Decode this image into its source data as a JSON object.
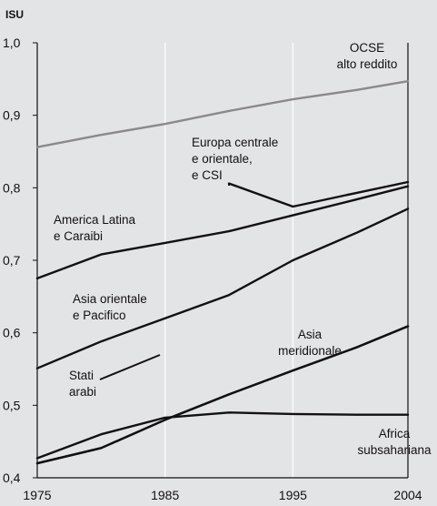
{
  "chart_data": {
    "type": "line",
    "ylabel": "ISU",
    "xlim": [
      1975,
      2004
    ],
    "ylim": [
      0.4,
      1.0
    ],
    "x_ticks": [
      "1975",
      "1985",
      "1995",
      "2004"
    ],
    "y_ticks": [
      "0,4",
      "0,5",
      "0,6",
      "0,7",
      "0,8",
      "0,9",
      "1,0"
    ],
    "grid": "vertical",
    "series": [
      {
        "name": "OCSE alto reddito",
        "color": "#8a8a8a",
        "x": [
          1975,
          1980,
          1985,
          1990,
          1995,
          2000,
          2004
        ],
        "values": [
          0.856,
          0.873,
          0.888,
          0.906,
          0.922,
          0.935,
          0.947
        ]
      },
      {
        "name": "Europa centrale e orientale, e CSI",
        "color": "#111111",
        "x": [
          1990,
          1995,
          2000,
          2004
        ],
        "values": [
          0.806,
          0.774,
          0.793,
          0.808
        ]
      },
      {
        "name": "America Latina e Caraibi",
        "color": "#111111",
        "x": [
          1975,
          1980,
          1985,
          1990,
          1995,
          2000,
          2004
        ],
        "values": [
          0.675,
          0.708,
          0.724,
          0.74,
          0.762,
          0.784,
          0.802
        ]
      },
      {
        "name": "Asia orientale e Pacifico",
        "color": "#111111",
        "x": [
          1975,
          1980,
          1985,
          1990,
          1995,
          2000,
          2004
        ],
        "values": [
          0.551,
          0.588,
          0.62,
          0.652,
          0.7,
          0.738,
          0.771
        ]
      },
      {
        "name": "Stati arabi",
        "color": "#111111",
        "x": [
          1975,
          1980,
          1985,
          1990,
          1995,
          2000,
          2004
        ],
        "values": [
          0.427,
          0.46,
          0.483,
          0.49,
          0.488,
          0.487,
          0.487
        ]
      },
      {
        "name": "Asia meridionale",
        "color": "#111111",
        "x": [
          1975,
          1980,
          1985,
          1990,
          1995,
          2000,
          2004
        ],
        "values": [
          0.42,
          0.441,
          0.48,
          0.515,
          0.548,
          0.58,
          0.609
        ]
      },
      {
        "name": "Africa subsahariana",
        "color": "#111111",
        "x": [
          1975,
          1980,
          1985,
          1990,
          1995,
          2000,
          2004
        ],
        "values": [
          0.42,
          0.441,
          0.48,
          0.515,
          0.548,
          0.58,
          0.609
        ]
      }
    ],
    "annotations": [
      {
        "id": "ocse",
        "lines": [
          "OCSE",
          "alto reddito"
        ]
      },
      {
        "id": "europa",
        "lines": [
          "Europa centrale",
          "e orientale,",
          "e CSI"
        ]
      },
      {
        "id": "america",
        "lines": [
          "America Latina",
          "e Caraibi"
        ]
      },
      {
        "id": "asiaor",
        "lines": [
          "Asia orientale",
          "e Pacifico"
        ]
      },
      {
        "id": "stati",
        "lines": [
          "Stati",
          "arabi"
        ]
      },
      {
        "id": "asiamer",
        "lines": [
          "Asia",
          "meridionale"
        ]
      },
      {
        "id": "africa",
        "lines": [
          "Africa",
          "subsahariana"
        ]
      }
    ]
  }
}
